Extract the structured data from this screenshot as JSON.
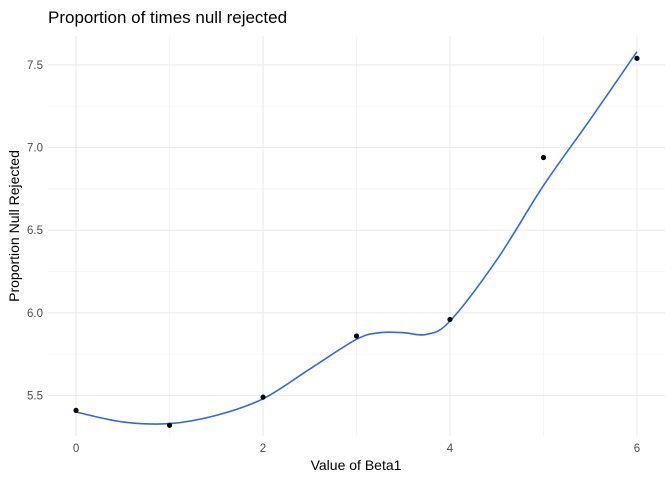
{
  "chart_data": {
    "type": "scatter",
    "title": "Proportion of times null rejected",
    "xlabel": "Value of Beta1",
    "ylabel": "Proportion Null Rejected",
    "xlim": [
      -0.3,
      6.3
    ],
    "ylim": [
      5.255,
      7.675
    ],
    "x_ticks": [
      0,
      2,
      4,
      6
    ],
    "y_ticks": [
      5.5,
      6.0,
      6.5,
      7.0,
      7.5
    ],
    "x_tick_labels": [
      "0",
      "2",
      "4",
      "6"
    ],
    "y_tick_labels": [
      "5.5",
      "6.0",
      "6.5",
      "7.0",
      "7.5"
    ],
    "grid": true,
    "legend": "none",
    "series": [
      {
        "type": "scatter",
        "color": "#000000",
        "x": [
          0,
          1,
          2,
          3,
          4,
          5,
          6
        ],
        "y": [
          5.41,
          5.32,
          5.49,
          5.86,
          5.96,
          6.94,
          7.54
        ]
      },
      {
        "type": "line",
        "smooth": true,
        "color": "#3366e6",
        "x": [
          0,
          0.5,
          1,
          1.5,
          2,
          2.5,
          3,
          3.25,
          3.5,
          3.75,
          4,
          4.5,
          5,
          5.5,
          6
        ],
        "y": [
          5.4,
          5.34,
          5.33,
          5.38,
          5.48,
          5.66,
          5.84,
          5.88,
          5.88,
          5.87,
          5.95,
          6.32,
          6.77,
          7.17,
          7.58
        ]
      }
    ]
  }
}
